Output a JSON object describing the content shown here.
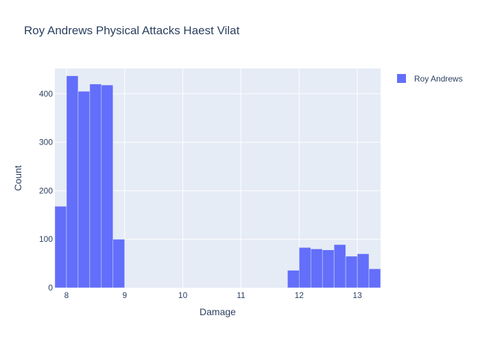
{
  "chart_data": {
    "type": "bar",
    "histogram": true,
    "title": "Roy Andrews Physical Attacks Haest Vilat",
    "xlabel": "Damage",
    "ylabel": "Count",
    "xlim": [
      7.8,
      13.4
    ],
    "ylim": [
      0,
      452
    ],
    "bin_width": 0.2,
    "x_ticks": [
      8,
      9,
      10,
      11,
      12,
      13
    ],
    "x_tick_labels": [
      "8",
      "9",
      "10",
      "11",
      "12",
      "13"
    ],
    "y_ticks": [
      0,
      100,
      200,
      300,
      400
    ],
    "y_tick_labels": [
      "0",
      "100",
      "200",
      "300",
      "400"
    ],
    "grid": true,
    "legend_position": "top-right",
    "colors": {
      "plot_background": "#e5ecf6",
      "grid": "#ffffff",
      "text": "#2a3f5f"
    },
    "series": [
      {
        "name": "Roy Andrews",
        "color": "#636efa",
        "bins": [
          {
            "x0": 7.8,
            "x1": 8.0,
            "count": 168
          },
          {
            "x0": 8.0,
            "x1": 8.2,
            "count": 437
          },
          {
            "x0": 8.2,
            "x1": 8.4,
            "count": 405
          },
          {
            "x0": 8.4,
            "x1": 8.6,
            "count": 420
          },
          {
            "x0": 8.6,
            "x1": 8.8,
            "count": 418
          },
          {
            "x0": 8.8,
            "x1": 9.0,
            "count": 100
          },
          {
            "x0": 11.8,
            "x1": 12.0,
            "count": 36
          },
          {
            "x0": 12.0,
            "x1": 12.2,
            "count": 83
          },
          {
            "x0": 12.2,
            "x1": 12.4,
            "count": 80
          },
          {
            "x0": 12.4,
            "x1": 12.6,
            "count": 78
          },
          {
            "x0": 12.6,
            "x1": 12.8,
            "count": 89
          },
          {
            "x0": 12.8,
            "x1": 13.0,
            "count": 65
          },
          {
            "x0": 13.0,
            "x1": 13.2,
            "count": 70
          },
          {
            "x0": 13.2,
            "x1": 13.4,
            "count": 39
          }
        ]
      }
    ]
  }
}
